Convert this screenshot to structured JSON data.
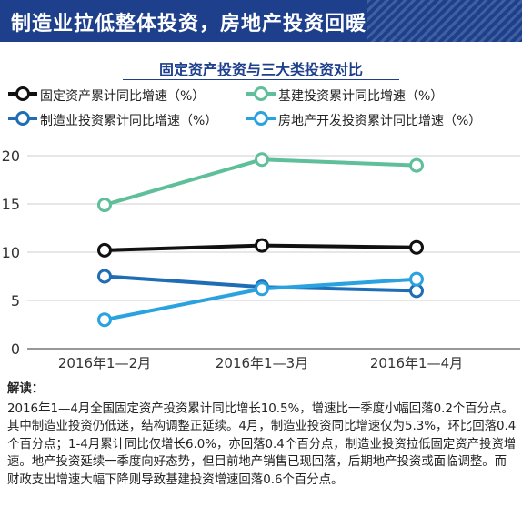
{
  "banner": {
    "title": "制造业拉低整体投资，房地产投资回暖"
  },
  "chart_data": {
    "type": "line",
    "title": "固定资产投资与三大类投资对比",
    "categories": [
      "2016年1—2月",
      "2016年1—3月",
      "2016年1—4月"
    ],
    "y_ticks": [
      "0",
      "5",
      "10",
      "15",
      "20"
    ],
    "ylim": [
      0,
      20
    ],
    "grid": "horizontal",
    "legend_position": "top",
    "series": [
      {
        "name": "固定资产累计同比增速（%）",
        "color": "#111111",
        "values": [
          10.2,
          10.7,
          10.5
        ]
      },
      {
        "name": "基建投资累计同比增速（%）",
        "color": "#5fbf9a",
        "values": [
          14.9,
          19.6,
          19.0
        ]
      },
      {
        "name": "制造业投资累计同比增速（%）",
        "color": "#1f6eb5",
        "values": [
          7.5,
          6.4,
          6.0
        ]
      },
      {
        "name": "房地产开发投资累计同比增速（%）",
        "color": "#2aa2e0",
        "values": [
          3.0,
          6.2,
          7.2
        ]
      }
    ]
  },
  "notes": {
    "heading": "解读：",
    "body": "2016年1—4月全国固定资产投资累计同比增长10.5%，增速比一季度小幅回落0.2个百分点。其中制造业投资仍低迷，结构调整正延续。4月，制造业投资同比增速仅为5.3%，环比回落0.4个百分点；1-4月累计同比仅增长6.0%，亦回落0.4个百分点，制造业投资拉低固定资产投资增速。地产投资延续一季度向好态势，但目前地产销售已现回落，后期地产投资或面临调整。而财政支出增速大幅下降则导致基建投资增速回落0.6个百分点。"
  }
}
